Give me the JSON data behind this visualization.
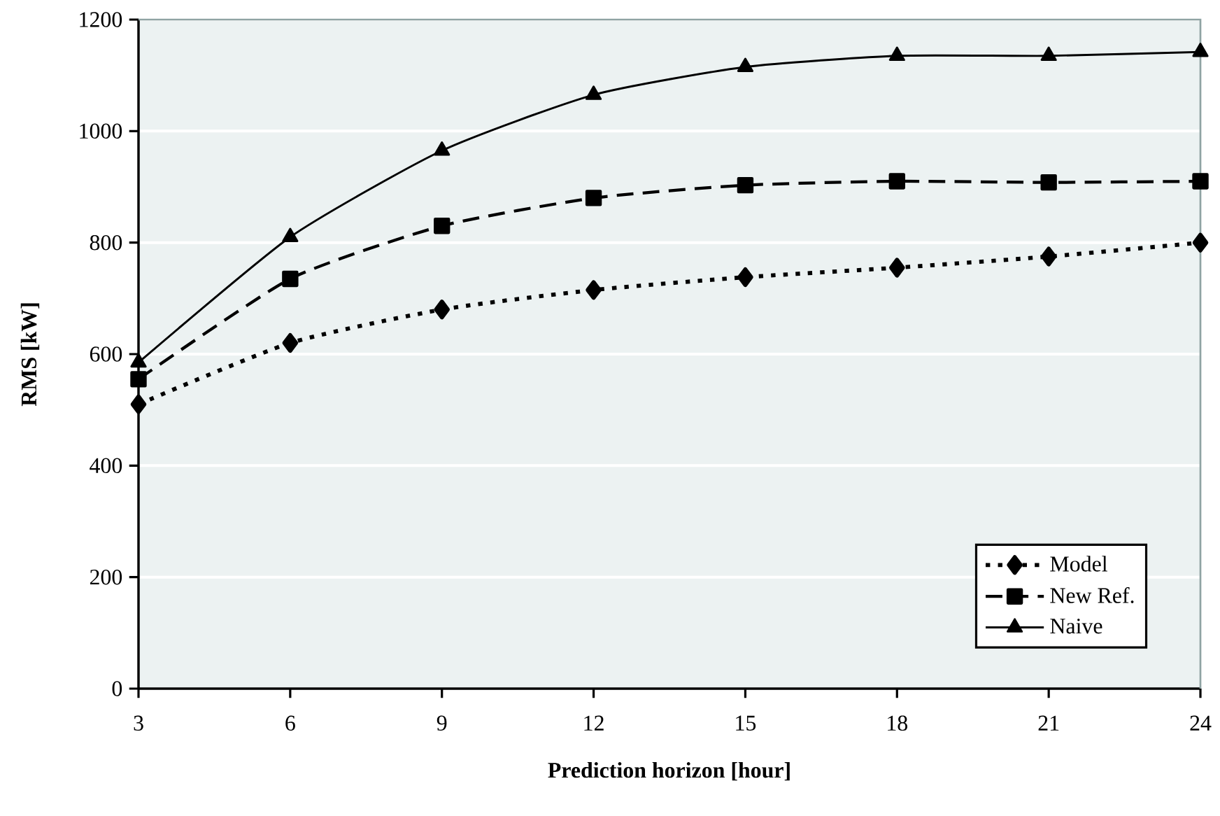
{
  "chart_data": {
    "type": "line",
    "x": [
      3,
      6,
      9,
      12,
      15,
      18,
      21,
      24
    ],
    "series": [
      {
        "name": "Model",
        "color": "#000000",
        "marker": "diamond",
        "line_style": "dotted",
        "values": [
          510,
          620,
          680,
          715,
          738,
          755,
          775,
          800
        ]
      },
      {
        "name": "New Ref.",
        "color": "#000000",
        "marker": "square",
        "line_style": "dashed",
        "values": [
          555,
          735,
          830,
          880,
          903,
          910,
          908,
          910
        ]
      },
      {
        "name": "Naive",
        "color": "#000000",
        "marker": "triangle",
        "line_style": "solid",
        "values": [
          585,
          810,
          965,
          1065,
          1115,
          1135,
          1135,
          1142
        ]
      }
    ],
    "xlabel": "Prediction horizon [hour]",
    "ylabel": "RMS [kW]",
    "xlim": [
      3,
      24
    ],
    "ylim": [
      0,
      1200
    ],
    "xticks": [
      3,
      6,
      9,
      12,
      15,
      18,
      21,
      24
    ],
    "yticks": [
      0,
      200,
      400,
      600,
      800,
      1000,
      1200
    ],
    "grid": "y",
    "legend": "bottom right"
  }
}
